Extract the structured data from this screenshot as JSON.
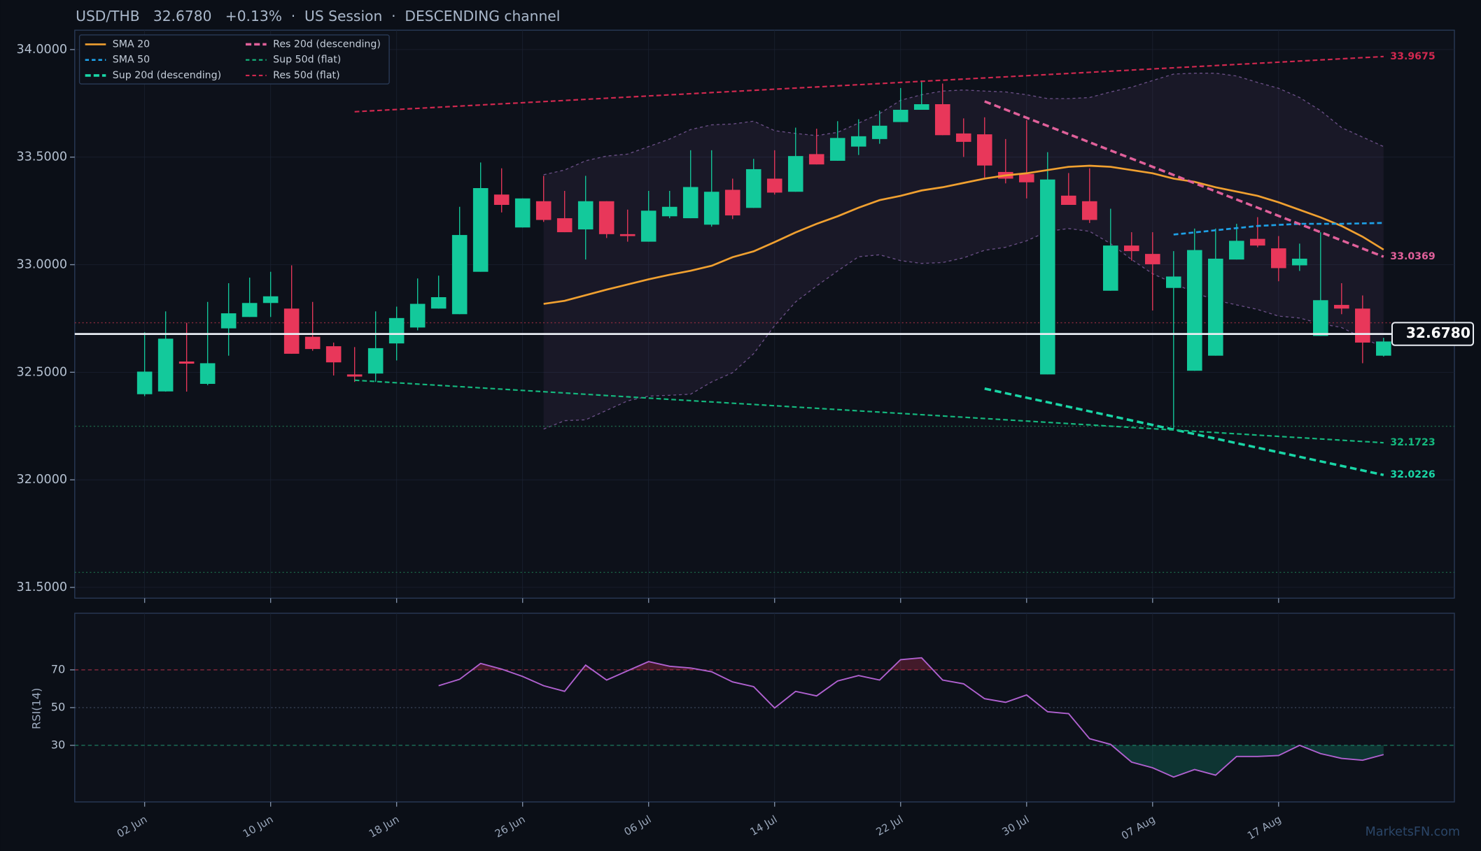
{
  "chart_data": [
    {
      "type": "candlestick",
      "title": "USD/THB   32.6780   +0.13%  ·  US Session  ·  DESCENDING channel",
      "watermark": "MarketsFN.com",
      "categories": [
        "02 Jun",
        null,
        null,
        null,
        null,
        null,
        "10 Jun",
        null,
        null,
        null,
        null,
        null,
        "18 Jun",
        null,
        null,
        null,
        null,
        null,
        "26 Jun",
        null,
        null,
        null,
        null,
        null,
        "06 Jul",
        null,
        null,
        null,
        null,
        null,
        "14 Jul",
        null,
        null,
        null,
        null,
        null,
        "22 Jul",
        null,
        null,
        null,
        null,
        null,
        "30 Jul",
        null,
        null,
        null,
        null,
        null,
        "07 Aug",
        null,
        null,
        null,
        null,
        null,
        "17 Aug",
        null,
        null,
        null,
        null,
        null
      ],
      "open": [
        32.398,
        32.411,
        32.55,
        32.446,
        32.704,
        32.757,
        32.822,
        32.796,
        32.665,
        32.621,
        32.49,
        32.494,
        32.634,
        32.708,
        32.796,
        32.77,
        32.967,
        33.326,
        33.173,
        33.295,
        33.216,
        33.164,
        33.295,
        33.142,
        33.107,
        33.225,
        33.216,
        33.186,
        33.348,
        33.264,
        33.4,
        33.339,
        33.514,
        33.483,
        33.549,
        33.584,
        33.663,
        33.72,
        33.746,
        33.61,
        33.606,
        33.431,
        33.422,
        32.49,
        33.321,
        33.295,
        32.879,
        33.089,
        33.05,
        32.892,
        32.507,
        32.577,
        33.024,
        33.12,
        33.076,
        32.997,
        32.669,
        32.813,
        32.796,
        32.577
      ],
      "high": [
        32.686,
        32.783,
        32.73,
        32.827,
        32.914,
        32.94,
        32.967,
        32.997,
        32.827,
        32.638,
        32.617,
        32.783,
        32.805,
        32.936,
        32.949,
        33.269,
        33.475,
        33.448,
        33.308,
        33.413,
        33.343,
        33.413,
        33.295,
        33.256,
        33.343,
        33.343,
        33.532,
        33.532,
        33.4,
        33.492,
        33.532,
        33.637,
        33.632,
        33.667,
        33.676,
        33.716,
        33.821,
        33.856,
        33.842,
        33.68,
        33.685,
        33.584,
        33.672,
        33.523,
        33.426,
        33.448,
        33.26,
        33.151,
        33.151,
        33.063,
        33.168,
        33.168,
        33.19,
        33.221,
        33.133,
        33.098,
        33.151,
        32.914,
        32.857,
        32.66
      ],
      "low": [
        32.389,
        32.41,
        32.41,
        32.44,
        32.577,
        32.757,
        32.757,
        32.586,
        32.6,
        32.485,
        32.455,
        32.455,
        32.555,
        32.695,
        32.796,
        32.77,
        32.967,
        33.243,
        33.173,
        33.199,
        33.151,
        33.024,
        33.124,
        33.107,
        33.107,
        33.216,
        33.216,
        33.177,
        33.212,
        33.264,
        33.326,
        33.339,
        33.466,
        33.483,
        33.51,
        33.562,
        33.663,
        33.72,
        33.602,
        33.501,
        33.405,
        33.378,
        33.308,
        32.49,
        33.278,
        33.194,
        32.879,
        33.019,
        32.787,
        32.236,
        32.507,
        32.577,
        33.024,
        33.081,
        32.923,
        32.971,
        32.669,
        32.77,
        32.542,
        32.573
      ],
      "close": [
        32.503,
        32.656,
        32.54,
        32.542,
        32.774,
        32.822,
        32.853,
        32.586,
        32.608,
        32.546,
        32.48,
        32.612,
        32.752,
        32.818,
        32.849,
        33.138,
        33.356,
        33.278,
        33.308,
        33.208,
        33.151,
        33.295,
        33.142,
        33.133,
        33.251,
        33.269,
        33.361,
        33.339,
        33.229,
        33.444,
        33.335,
        33.505,
        33.466,
        33.589,
        33.597,
        33.646,
        33.72,
        33.746,
        33.602,
        33.571,
        33.461,
        33.4,
        33.383,
        33.396,
        33.278,
        33.208,
        33.089,
        33.063,
        33.002,
        32.945,
        33.068,
        33.028,
        33.111,
        33.089,
        32.984,
        33.028,
        32.835,
        32.796,
        32.638,
        32.643
      ],
      "up_color": "#13c99b",
      "down_color": "#e8375a",
      "series": [
        {
          "name": "SMA 20",
          "color": "#f0a030",
          "dashed": false,
          "width": 2,
          "values": [
            null,
            null,
            null,
            null,
            null,
            null,
            null,
            null,
            null,
            null,
            null,
            null,
            null,
            null,
            null,
            null,
            null,
            null,
            null,
            32.818,
            32.832,
            32.858,
            32.884,
            32.908,
            32.932,
            32.953,
            32.972,
            32.995,
            33.035,
            33.062,
            33.105,
            33.15,
            33.19,
            33.225,
            33.265,
            33.3,
            33.32,
            33.345,
            33.36,
            33.38,
            33.4,
            33.415,
            33.425,
            33.44,
            33.455,
            33.46,
            33.455,
            33.44,
            33.425,
            33.4,
            33.385,
            33.36,
            33.34,
            33.32,
            33.29,
            33.255,
            33.22,
            33.18,
            33.13,
            33.07
          ]
        },
        {
          "name": "SMA 50",
          "color": "#1ea0e6",
          "dashed": true,
          "width": 2,
          "values": [
            null,
            null,
            null,
            null,
            null,
            null,
            null,
            null,
            null,
            null,
            null,
            null,
            null,
            null,
            null,
            null,
            null,
            null,
            null,
            null,
            null,
            null,
            null,
            null,
            null,
            null,
            null,
            null,
            null,
            null,
            null,
            null,
            null,
            null,
            null,
            null,
            null,
            null,
            null,
            null,
            null,
            null,
            null,
            null,
            null,
            null,
            null,
            null,
            null,
            33.14,
            33.15,
            33.16,
            33.17,
            33.18,
            33.185,
            33.19,
            33.19,
            33.19,
            33.192,
            33.194
          ]
        },
        {
          "name": "Sup 20d (descending)",
          "color": "#19d6a6",
          "dashed": true,
          "width": 2.6,
          "label_end": true,
          "x": [
            40,
            59
          ],
          "values": [
            32.424,
            32.0226
          ]
        },
        {
          "name": "Res 20d (descending)",
          "color": "#e0609a",
          "dashed": true,
          "width": 2.6,
          "label_end": true,
          "x": [
            40,
            59
          ],
          "values": [
            33.759,
            33.0369
          ]
        },
        {
          "name": "Sup 50d (flat)",
          "color": "#14b87e",
          "dashed": true,
          "width": 1.6,
          "label_end": true,
          "x": [
            10,
            59
          ],
          "values": [
            32.463,
            32.1723
          ]
        },
        {
          "name": "Res 50d (flat)",
          "color": "#d0284f",
          "dashed": true,
          "width": 1.6,
          "label_end": true,
          "x": [
            10,
            59
          ],
          "values": [
            33.711,
            33.9675
          ]
        }
      ],
      "bands": {
        "color": "#6a4f86",
        "upper": [
          null,
          null,
          null,
          null,
          null,
          null,
          null,
          null,
          null,
          null,
          null,
          null,
          null,
          null,
          null,
          null,
          null,
          null,
          null,
          33.418,
          33.44,
          33.483,
          33.505,
          33.514,
          33.549,
          33.584,
          33.628,
          33.65,
          33.654,
          33.667,
          33.623,
          33.61,
          33.6,
          33.615,
          33.658,
          33.702,
          33.764,
          33.79,
          33.807,
          33.812,
          33.807,
          33.803,
          33.79,
          33.772,
          33.772,
          33.777,
          33.803,
          33.825,
          33.856,
          33.886,
          33.89,
          33.89,
          33.877,
          33.847,
          33.82,
          33.777,
          33.716,
          33.637,
          33.593,
          33.549
        ],
        "lower": [
          null,
          null,
          null,
          null,
          null,
          null,
          null,
          null,
          null,
          null,
          null,
          null,
          null,
          null,
          null,
          null,
          null,
          null,
          null,
          32.236,
          32.275,
          32.279,
          32.323,
          32.367,
          32.389,
          32.393,
          32.398,
          32.455,
          32.498,
          32.586,
          32.717,
          32.827,
          32.901,
          32.971,
          33.037,
          33.046,
          33.019,
          33.006,
          33.01,
          33.032,
          33.067,
          33.081,
          33.111,
          33.155,
          33.168,
          33.155,
          33.098,
          33.024,
          32.958,
          32.914,
          32.87,
          32.835,
          32.813,
          32.792,
          32.761,
          32.752,
          32.726,
          32.708,
          32.66,
          32.616
        ]
      },
      "levels": [
        {
          "value": 32.73,
          "color": "#8a2b3d"
        },
        {
          "value": 32.249,
          "color": "#1d6b4a"
        },
        {
          "value": 31.57,
          "color": "#1d6b4a"
        }
      ],
      "last": {
        "value": 32.678,
        "label": "32.6780"
      },
      "ylim": [
        31.45,
        34.09
      ],
      "yticks": [
        {
          "value": 31.5,
          "label": "31.5000"
        },
        {
          "value": 32,
          "label": "32.0000"
        },
        {
          "value": 32.5,
          "label": "32.5000"
        },
        {
          "value": 33,
          "label": "33.0000"
        },
        {
          "value": 33.5,
          "label": "33.5000"
        },
        {
          "value": 34,
          "label": "34.0000"
        }
      ],
      "grid": true,
      "legend": "upper left"
    },
    {
      "type": "line",
      "y_label": "RSI(14)",
      "color": "#b061d0",
      "values": [
        null,
        null,
        null,
        null,
        null,
        null,
        null,
        null,
        null,
        null,
        null,
        null,
        null,
        null,
        61.6,
        65,
        73.4,
        70.4,
        66.5,
        61.6,
        58.6,
        72.5,
        64.6,
        69.5,
        74.4,
        71.9,
        71,
        69,
        63.6,
        61.1,
        49.8,
        58.6,
        56.2,
        64.1,
        67,
        64.6,
        75.4,
        76.4,
        64.6,
        62.6,
        54.7,
        52.8,
        56.7,
        47.8,
        46.8,
        33.5,
        30.5,
        21.1,
        18.1,
        13.2,
        17.2,
        14.2,
        24.1,
        24.1,
        24.6,
        30,
        25.6,
        23.1,
        22.1,
        25.1
      ],
      "overbought": 70,
      "oversold": 30,
      "overbought_color": "#e8375a",
      "oversold_color": "#13c99b",
      "ylim": [
        0,
        100
      ],
      "yticks": [
        30,
        50,
        70
      ],
      "grid": true
    }
  ]
}
